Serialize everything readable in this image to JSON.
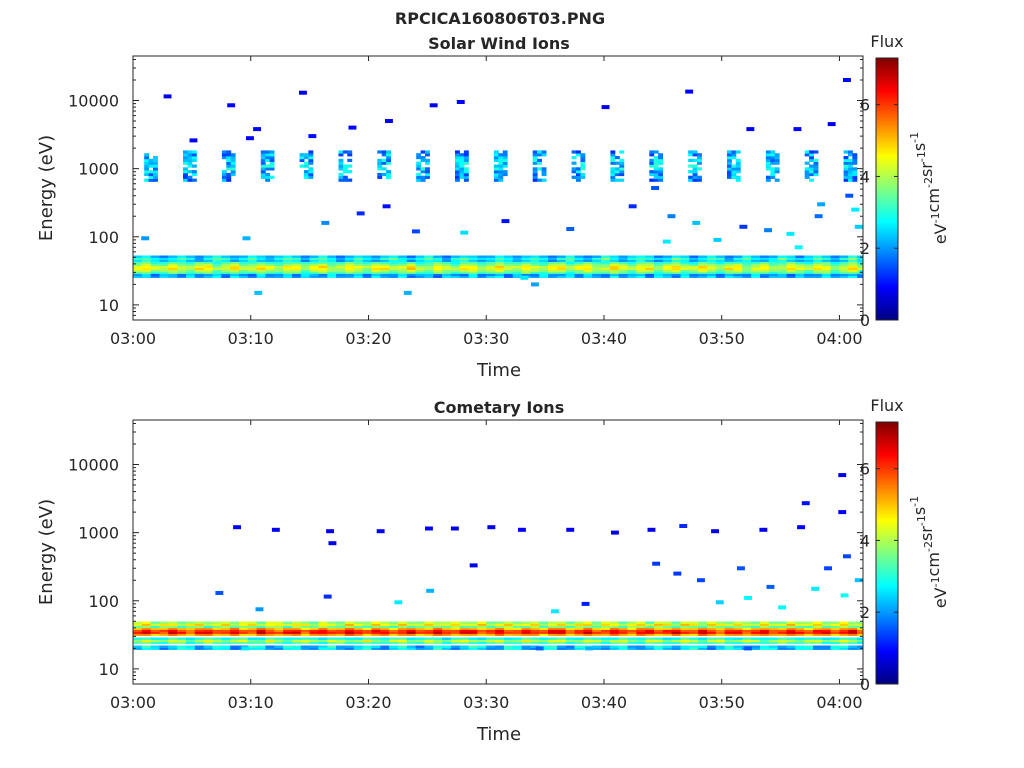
{
  "figure": {
    "title": "RPCICA160806T03.PNG"
  },
  "colors": {
    "axis": "#262626",
    "background": "#ffffff",
    "colormap": [
      "#00007f",
      "#0000ff",
      "#0080ff",
      "#00ffff",
      "#80ff80",
      "#ffff00",
      "#ff8000",
      "#ff0000",
      "#7f0000"
    ]
  },
  "chart_data": [
    {
      "type": "heatmap",
      "title": "Solar Wind Ions",
      "xlabel": "Time",
      "ylabel": "Energy (eV)",
      "x_ticks": [
        "03:00",
        "03:10",
        "03:20",
        "03:30",
        "03:40",
        "03:50",
        "04:00"
      ],
      "x_range_minutes": [
        0,
        62
      ],
      "y_scale": "log",
      "y_ticks": [
        "10",
        "100",
        "1000",
        "10000"
      ],
      "y_tick_values": [
        10,
        100,
        1000,
        10000
      ],
      "y_range": [
        6,
        45000
      ],
      "colorbar": {
        "label": "Flux",
        "unit": "eV-1cm-2sr-1s-1",
        "range": [
          0,
          7.3
        ],
        "ticks": [
          "0",
          "2",
          "4",
          "6"
        ],
        "tick_values": [
          0,
          2,
          4,
          6
        ]
      },
      "bands": [
        {
          "e_center": 34,
          "e_halfwidth_dex": 0.09,
          "flux": 4.6,
          "period_min": 2.5,
          "amplitude": 0.5
        },
        {
          "e_center": 46,
          "e_halfwidth_dex": 0.05,
          "flux": 3.0,
          "period_min": 3.0,
          "amplitude": 0.6
        },
        {
          "e_center": 26,
          "e_halfwidth_dex": 0.03,
          "flux": 2.6,
          "period_min": 2.0,
          "amplitude": 0.6
        }
      ],
      "bursts": {
        "period_min": 3.3,
        "e_low": 650,
        "e_high": 1800,
        "flux": 2.4,
        "width_min": 1.1
      },
      "scatter_points": [
        {
          "t": 2.6,
          "e": 11500,
          "f": 0.8
        },
        {
          "t": 4.8,
          "e": 2600,
          "f": 0.8
        },
        {
          "t": 8.0,
          "e": 8500,
          "f": 0.9
        },
        {
          "t": 9.6,
          "e": 2800,
          "f": 0.8
        },
        {
          "t": 10.2,
          "e": 3800,
          "f": 0.9
        },
        {
          "t": 14.1,
          "e": 13000,
          "f": 0.8
        },
        {
          "t": 14.9,
          "e": 3000,
          "f": 1.0
        },
        {
          "t": 18.3,
          "e": 4000,
          "f": 0.9
        },
        {
          "t": 21.4,
          "e": 5000,
          "f": 0.8
        },
        {
          "t": 25.2,
          "e": 8500,
          "f": 0.8
        },
        {
          "t": 27.5,
          "e": 9500,
          "f": 0.9
        },
        {
          "t": 39.8,
          "e": 8000,
          "f": 0.8
        },
        {
          "t": 46.9,
          "e": 13500,
          "f": 0.9
        },
        {
          "t": 52.1,
          "e": 3800,
          "f": 0.8
        },
        {
          "t": 56.1,
          "e": 3800,
          "f": 0.9
        },
        {
          "t": 59.0,
          "e": 4500,
          "f": 0.8
        },
        {
          "t": 60.3,
          "e": 20000,
          "f": 0.9
        },
        {
          "t": 19.0,
          "e": 220,
          "f": 1.2
        },
        {
          "t": 21.2,
          "e": 280,
          "f": 1.0
        },
        {
          "t": 31.3,
          "e": 170,
          "f": 1.0
        },
        {
          "t": 27.8,
          "e": 115,
          "f": 2.5
        },
        {
          "t": 16.0,
          "e": 160,
          "f": 1.9
        },
        {
          "t": 10.3,
          "e": 15,
          "f": 2.3
        },
        {
          "t": 23.0,
          "e": 15,
          "f": 2.2
        },
        {
          "t": 33.8,
          "e": 20,
          "f": 2.1
        },
        {
          "t": 0.7,
          "e": 95,
          "f": 2.0
        },
        {
          "t": 9.3,
          "e": 95,
          "f": 2.2
        },
        {
          "t": 23.7,
          "e": 120,
          "f": 1.4
        },
        {
          "t": 36.8,
          "e": 130,
          "f": 1.6
        },
        {
          "t": 45.4,
          "e": 200,
          "f": 1.8
        },
        {
          "t": 51.5,
          "e": 140,
          "f": 1.3
        },
        {
          "t": 53.6,
          "e": 125,
          "f": 1.8
        },
        {
          "t": 57.9,
          "e": 200,
          "f": 1.7
        },
        {
          "t": 60.5,
          "e": 400,
          "f": 1.5
        },
        {
          "t": 61.3,
          "e": 140,
          "f": 2.4
        },
        {
          "t": 61.0,
          "e": 250,
          "f": 2.6
        },
        {
          "t": 58.1,
          "e": 300,
          "f": 2.1
        },
        {
          "t": 49.3,
          "e": 90,
          "f": 2.4
        },
        {
          "t": 47.5,
          "e": 160,
          "f": 2.3
        },
        {
          "t": 45.0,
          "e": 85,
          "f": 2.6
        },
        {
          "t": 42.1,
          "e": 280,
          "f": 1.2
        },
        {
          "t": 44.0,
          "e": 520,
          "f": 1.5
        },
        {
          "t": 55.5,
          "e": 110,
          "f": 2.6
        },
        {
          "t": 56.2,
          "e": 70,
          "f": 2.7
        },
        {
          "t": 32.9,
          "e": 25,
          "f": 2.6
        },
        {
          "t": 61.7,
          "e": 30,
          "f": 2.5
        }
      ]
    },
    {
      "type": "heatmap",
      "title": "Cometary Ions",
      "xlabel": "Time",
      "ylabel": "Energy (eV)",
      "x_ticks": [
        "03:00",
        "03:10",
        "03:20",
        "03:30",
        "03:40",
        "03:50",
        "04:00"
      ],
      "x_range_minutes": [
        0,
        62
      ],
      "y_scale": "log",
      "y_ticks": [
        "10",
        "100",
        "1000",
        "10000"
      ],
      "y_tick_values": [
        10,
        100,
        1000,
        10000
      ],
      "y_range": [
        6,
        45000
      ],
      "colorbar": {
        "label": "Flux",
        "unit": "eV-1cm-2sr-1s-1",
        "range": [
          0,
          7.3
        ],
        "ticks": [
          "0",
          "2",
          "4",
          "6"
        ],
        "tick_values": [
          0,
          2,
          4,
          6
        ]
      },
      "bands": [
        {
          "e_center": 34,
          "e_halfwidth_dex": 0.07,
          "flux": 6.6,
          "period_min": 2.5,
          "amplitude": 0.5
        },
        {
          "e_center": 44,
          "e_halfwidth_dex": 0.05,
          "flux": 4.7,
          "period_min": 2.2,
          "amplitude": 0.5
        },
        {
          "e_center": 25,
          "e_halfwidth_dex": 0.04,
          "flux": 4.2,
          "period_min": 2.7,
          "amplitude": 0.5
        },
        {
          "e_center": 20,
          "e_halfwidth_dex": 0.03,
          "flux": 2.9,
          "period_min": 3.1,
          "amplitude": 0.7
        }
      ],
      "bursts": null,
      "scatter_points": [
        {
          "t": 8.5,
          "e": 1200,
          "f": 0.9
        },
        {
          "t": 11.8,
          "e": 1100,
          "f": 0.8
        },
        {
          "t": 16.4,
          "e": 1050,
          "f": 0.8
        },
        {
          "t": 16.6,
          "e": 700,
          "f": 0.8
        },
        {
          "t": 20.7,
          "e": 1050,
          "f": 0.9
        },
        {
          "t": 24.8,
          "e": 1150,
          "f": 0.8
        },
        {
          "t": 27.0,
          "e": 1150,
          "f": 0.8
        },
        {
          "t": 30.1,
          "e": 1200,
          "f": 0.8
        },
        {
          "t": 32.7,
          "e": 1100,
          "f": 0.8
        },
        {
          "t": 36.8,
          "e": 1100,
          "f": 0.8
        },
        {
          "t": 40.6,
          "e": 1000,
          "f": 0.8
        },
        {
          "t": 43.7,
          "e": 1100,
          "f": 0.8
        },
        {
          "t": 46.4,
          "e": 1250,
          "f": 1.2
        },
        {
          "t": 49.1,
          "e": 1050,
          "f": 0.8
        },
        {
          "t": 53.2,
          "e": 1100,
          "f": 0.8
        },
        {
          "t": 56.4,
          "e": 1200,
          "f": 0.9
        },
        {
          "t": 59.9,
          "e": 2000,
          "f": 0.9
        },
        {
          "t": 59.9,
          "e": 7000,
          "f": 0.8
        },
        {
          "t": 56.8,
          "e": 2700,
          "f": 1.0
        },
        {
          "t": 28.6,
          "e": 330,
          "f": 0.8
        },
        {
          "t": 24.9,
          "e": 140,
          "f": 2.2
        },
        {
          "t": 22.2,
          "e": 95,
          "f": 2.6
        },
        {
          "t": 16.2,
          "e": 115,
          "f": 1.2
        },
        {
          "t": 7.0,
          "e": 130,
          "f": 1.5
        },
        {
          "t": 10.4,
          "e": 75,
          "f": 2.0
        },
        {
          "t": 35.5,
          "e": 70,
          "f": 2.6
        },
        {
          "t": 38.1,
          "e": 90,
          "f": 1.1
        },
        {
          "t": 44.1,
          "e": 350,
          "f": 1.3
        },
        {
          "t": 45.9,
          "e": 250,
          "f": 1.3
        },
        {
          "t": 47.9,
          "e": 200,
          "f": 1.4
        },
        {
          "t": 51.3,
          "e": 300,
          "f": 1.5
        },
        {
          "t": 53.8,
          "e": 160,
          "f": 1.6
        },
        {
          "t": 58.7,
          "e": 300,
          "f": 1.4
        },
        {
          "t": 60.3,
          "e": 450,
          "f": 1.4
        },
        {
          "t": 61.3,
          "e": 200,
          "f": 2.3
        },
        {
          "t": 57.6,
          "e": 150,
          "f": 2.6
        },
        {
          "t": 60.1,
          "e": 120,
          "f": 2.8
        },
        {
          "t": 54.8,
          "e": 80,
          "f": 2.7
        },
        {
          "t": 49.5,
          "e": 95,
          "f": 2.4
        },
        {
          "t": 51.9,
          "e": 110,
          "f": 2.7
        },
        {
          "t": 34.2,
          "e": 20,
          "f": 1.6
        },
        {
          "t": 38.4,
          "e": 20,
          "f": 2.2
        },
        {
          "t": 51.9,
          "e": 20,
          "f": 1.5
        },
        {
          "t": 9.2,
          "e": 20,
          "f": 2.6
        }
      ]
    }
  ]
}
